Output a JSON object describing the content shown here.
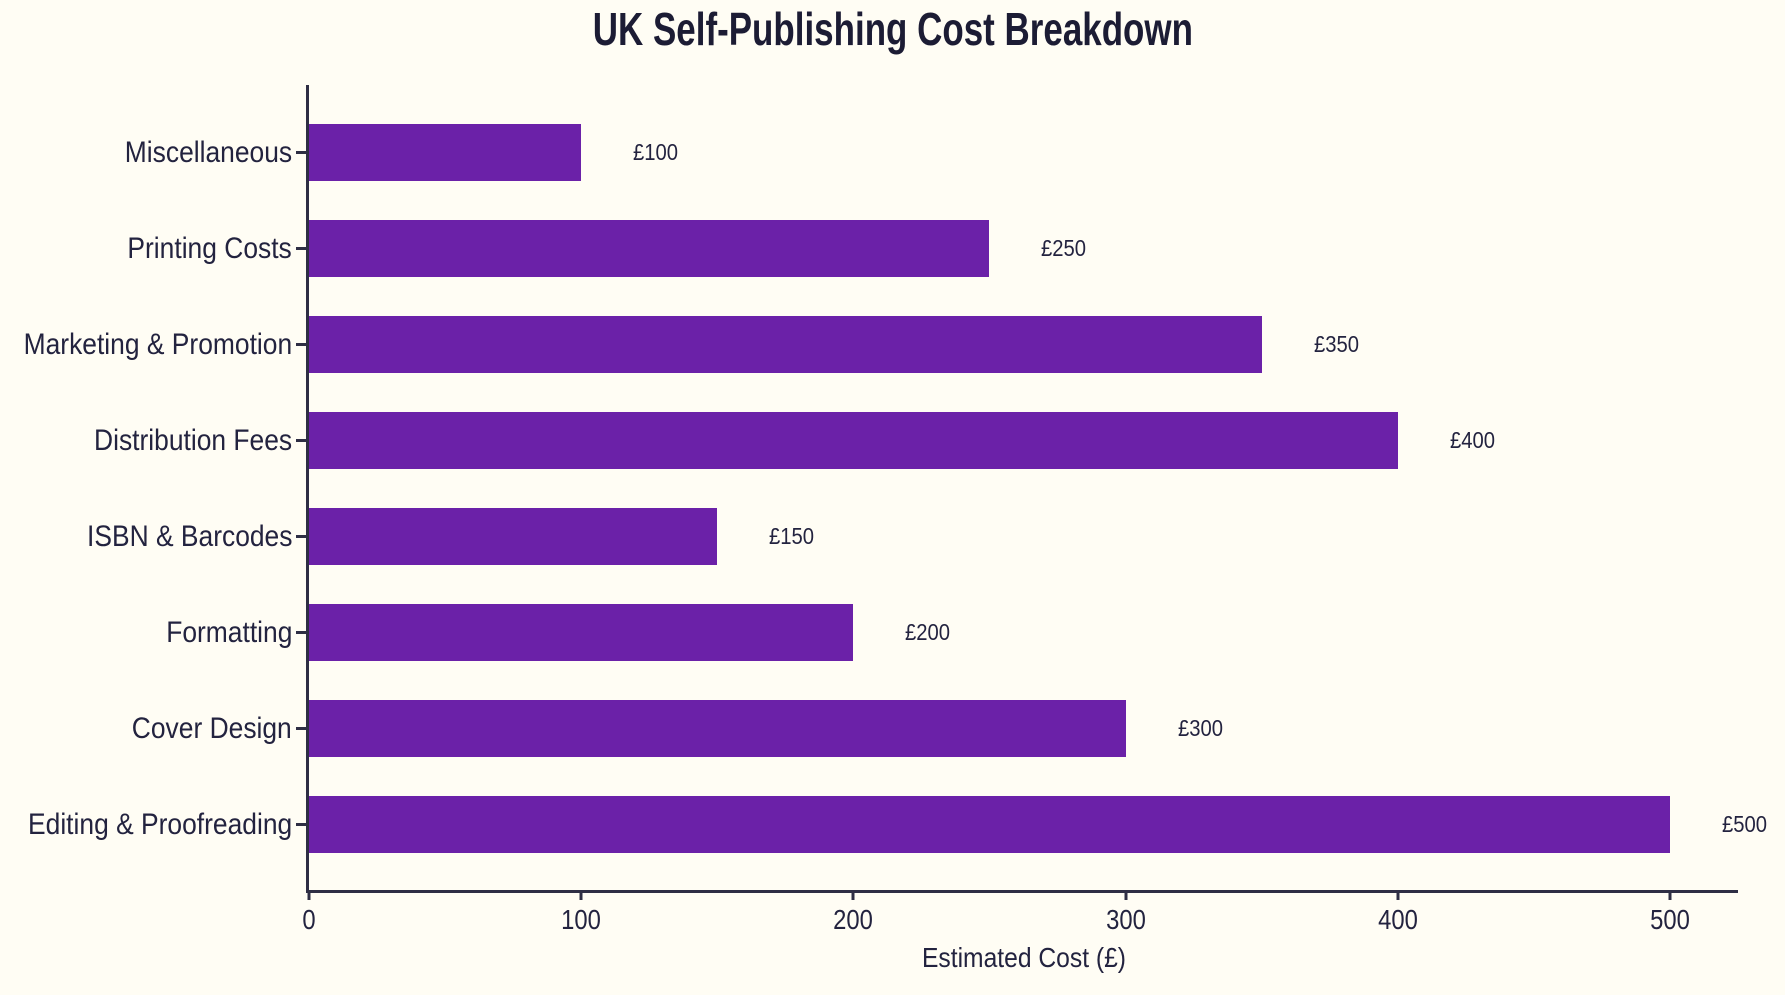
{
  "chart_data": {
    "type": "bar",
    "orientation": "horizontal",
    "title": "UK Self-Publishing Cost Breakdown",
    "xlabel": "Estimated Cost (£)",
    "ylabel": "",
    "category_order": "top-to-bottom",
    "categories": [
      "Miscellaneous",
      "Printing Costs",
      "Marketing & Promotion",
      "Distribution Fees",
      "ISBN & Barcodes",
      "Formatting",
      "Cover Design",
      "Editing & Proofreading"
    ],
    "values": [
      100,
      250,
      350,
      400,
      150,
      200,
      300,
      500
    ],
    "value_labels": [
      "£100",
      "£250",
      "£350",
      "£400",
      "£150",
      "£200",
      "£300",
      "£500"
    ],
    "x_tick_labels": [
      "0",
      "100",
      "200",
      "300",
      "400",
      "500"
    ],
    "x_tick_values": [
      0,
      100,
      200,
      300,
      400,
      500
    ],
    "xlim": [
      0,
      525
    ],
    "grid": false,
    "legend": null,
    "colors": {
      "bar": "#6B21A8",
      "text": "#23233F",
      "axis": "#2E2E44",
      "background": "#FFFDF4"
    }
  }
}
